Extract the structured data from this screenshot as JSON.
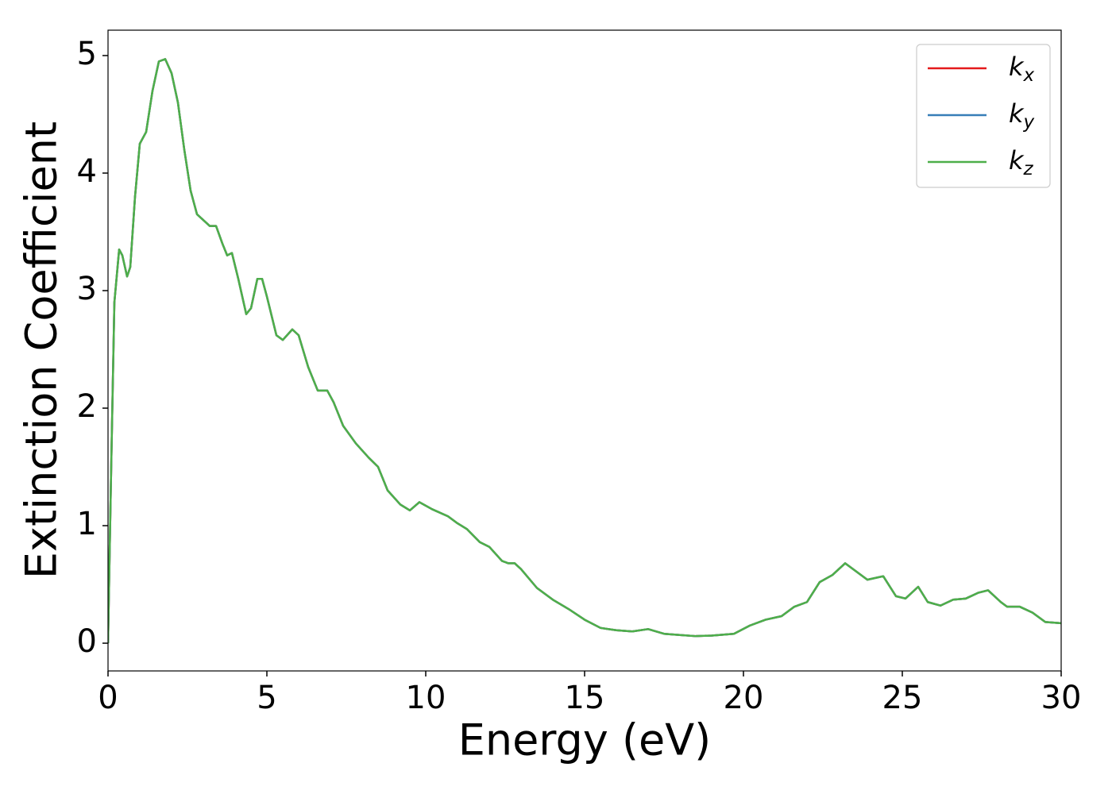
{
  "chart_data": {
    "type": "line",
    "xlabel": "Energy (eV)",
    "ylabel": "Extinction Coefficient",
    "x": [
      0,
      0.1,
      0.2,
      0.35,
      0.45,
      0.6,
      0.7,
      0.85,
      1.0,
      1.2,
      1.4,
      1.6,
      1.8,
      2.0,
      2.2,
      2.4,
      2.6,
      2.8,
      3.0,
      3.2,
      3.4,
      3.6,
      3.75,
      3.9,
      4.1,
      4.35,
      4.5,
      4.7,
      4.85,
      5.0,
      5.3,
      5.5,
      5.8,
      6.0,
      6.3,
      6.6,
      6.9,
      7.1,
      7.4,
      7.8,
      8.2,
      8.5,
      8.8,
      9.2,
      9.5,
      9.8,
      10.2,
      10.7,
      11.0,
      11.3,
      11.7,
      12.0,
      12.4,
      12.6,
      12.8,
      13.0,
      13.5,
      14.0,
      14.5,
      15.0,
      15.5,
      16.0,
      16.5,
      17.0,
      17.5,
      18.0,
      18.5,
      19.0,
      19.7,
      20.2,
      20.7,
      21.2,
      21.6,
      22.0,
      22.4,
      22.8,
      23.2,
      23.5,
      23.9,
      24.4,
      24.8,
      25.1,
      25.5,
      25.8,
      26.2,
      26.6,
      27.0,
      27.4,
      27.7,
      28.1,
      28.3,
      28.7,
      29.1,
      29.5,
      30.0
    ],
    "series": [
      {
        "name": "kx",
        "color": "#e41a1c",
        "values": [
          0,
          1.5,
          2.9,
          3.35,
          3.3,
          3.12,
          3.2,
          3.8,
          4.25,
          4.35,
          4.7,
          4.95,
          4.97,
          4.85,
          4.6,
          4.2,
          3.85,
          3.65,
          3.6,
          3.55,
          3.55,
          3.4,
          3.3,
          3.32,
          3.1,
          2.8,
          2.85,
          3.1,
          3.1,
          2.95,
          2.62,
          2.58,
          2.67,
          2.62,
          2.35,
          2.15,
          2.15,
          2.05,
          1.85,
          1.7,
          1.58,
          1.5,
          1.3,
          1.18,
          1.13,
          1.2,
          1.14,
          1.08,
          1.02,
          0.97,
          0.86,
          0.82,
          0.7,
          0.68,
          0.68,
          0.63,
          0.47,
          0.37,
          0.29,
          0.2,
          0.13,
          0.11,
          0.1,
          0.12,
          0.08,
          0.07,
          0.06,
          0.065,
          0.08,
          0.15,
          0.2,
          0.23,
          0.31,
          0.35,
          0.52,
          0.58,
          0.68,
          0.62,
          0.54,
          0.57,
          0.4,
          0.38,
          0.48,
          0.35,
          0.32,
          0.37,
          0.38,
          0.43,
          0.45,
          0.35,
          0.31,
          0.31,
          0.26,
          0.18,
          0.17
        ]
      },
      {
        "name": "ky",
        "color": "#377eb8",
        "values": [
          0,
          1.5,
          2.9,
          3.35,
          3.3,
          3.12,
          3.2,
          3.8,
          4.25,
          4.35,
          4.7,
          4.95,
          4.97,
          4.85,
          4.6,
          4.2,
          3.85,
          3.65,
          3.6,
          3.55,
          3.55,
          3.4,
          3.3,
          3.32,
          3.1,
          2.8,
          2.85,
          3.1,
          3.1,
          2.95,
          2.62,
          2.58,
          2.67,
          2.62,
          2.35,
          2.15,
          2.15,
          2.05,
          1.85,
          1.7,
          1.58,
          1.5,
          1.3,
          1.18,
          1.13,
          1.2,
          1.14,
          1.08,
          1.02,
          0.97,
          0.86,
          0.82,
          0.7,
          0.68,
          0.68,
          0.63,
          0.47,
          0.37,
          0.29,
          0.2,
          0.13,
          0.11,
          0.1,
          0.12,
          0.08,
          0.07,
          0.06,
          0.065,
          0.08,
          0.15,
          0.2,
          0.23,
          0.31,
          0.35,
          0.52,
          0.58,
          0.68,
          0.62,
          0.54,
          0.57,
          0.4,
          0.38,
          0.48,
          0.35,
          0.32,
          0.37,
          0.38,
          0.43,
          0.45,
          0.35,
          0.31,
          0.31,
          0.26,
          0.18,
          0.17
        ]
      },
      {
        "name": "kz",
        "color": "#4daf4a",
        "values": [
          0,
          1.5,
          2.9,
          3.35,
          3.3,
          3.12,
          3.2,
          3.8,
          4.25,
          4.35,
          4.7,
          4.95,
          4.97,
          4.85,
          4.6,
          4.2,
          3.85,
          3.65,
          3.6,
          3.55,
          3.55,
          3.4,
          3.3,
          3.32,
          3.1,
          2.8,
          2.85,
          3.1,
          3.1,
          2.95,
          2.62,
          2.58,
          2.67,
          2.62,
          2.35,
          2.15,
          2.15,
          2.05,
          1.85,
          1.7,
          1.58,
          1.5,
          1.3,
          1.18,
          1.13,
          1.2,
          1.14,
          1.08,
          1.02,
          0.97,
          0.86,
          0.82,
          0.7,
          0.68,
          0.68,
          0.63,
          0.47,
          0.37,
          0.29,
          0.2,
          0.13,
          0.11,
          0.1,
          0.12,
          0.08,
          0.07,
          0.06,
          0.065,
          0.08,
          0.15,
          0.2,
          0.23,
          0.31,
          0.35,
          0.52,
          0.58,
          0.68,
          0.62,
          0.54,
          0.57,
          0.4,
          0.38,
          0.48,
          0.35,
          0.32,
          0.37,
          0.38,
          0.43,
          0.45,
          0.35,
          0.31,
          0.31,
          0.26,
          0.18,
          0.17
        ]
      }
    ],
    "xlim": [
      0,
      30
    ],
    "ylim": [
      -0.236,
      5.216
    ],
    "xticks": [
      0,
      5,
      10,
      15,
      20,
      25,
      30
    ],
    "yticks": [
      0,
      1,
      2,
      3,
      4,
      5
    ],
    "grid": false,
    "legend": "upper right"
  }
}
